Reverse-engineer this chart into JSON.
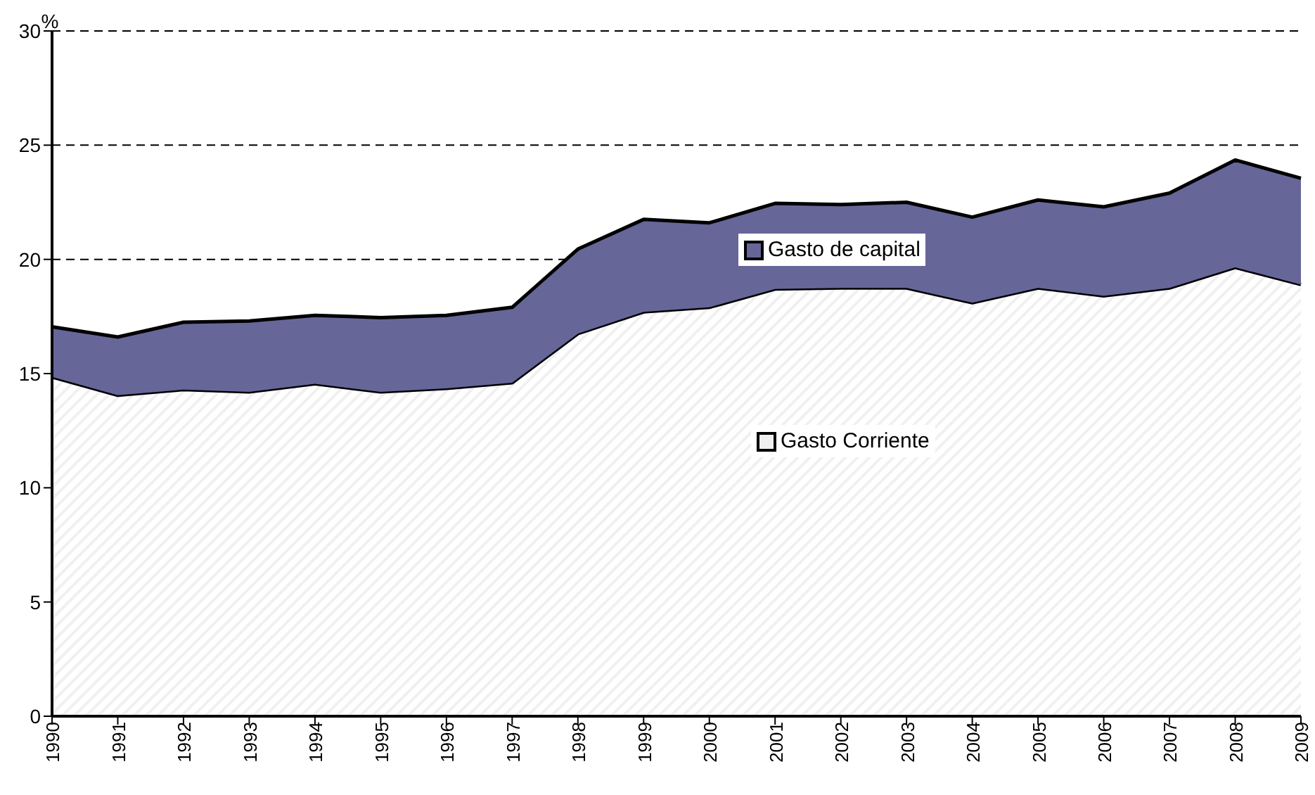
{
  "chart_data": {
    "type": "area",
    "stacked": true,
    "ylabel": "%",
    "categories": [
      "1990",
      "1991",
      "1992",
      "1993",
      "1994",
      "1995",
      "1996",
      "1997",
      "1998",
      "1999",
      "2000",
      "2001",
      "2002",
      "2003",
      "2004",
      "2005",
      "2006",
      "2007",
      "2008",
      "2009"
    ],
    "series": [
      {
        "name": "Gasto Corriente",
        "color": "#f0f0f0",
        "values": [
          14.85,
          14.05,
          14.3,
          14.2,
          14.55,
          14.2,
          14.35,
          14.6,
          16.75,
          17.7,
          17.9,
          18.7,
          18.75,
          18.75,
          18.1,
          18.75,
          18.4,
          18.75,
          19.65,
          18.9
        ]
      },
      {
        "name": "Gasto de capital",
        "color": "#666699",
        "values": [
          2.2,
          2.55,
          2.95,
          3.1,
          3.0,
          3.25,
          3.2,
          3.3,
          3.7,
          4.05,
          3.7,
          3.75,
          3.65,
          3.75,
          3.75,
          3.85,
          3.9,
          4.15,
          4.7,
          4.65
        ]
      }
    ],
    "ylim": [
      0,
      30
    ],
    "yticks": [
      0,
      5,
      10,
      15,
      20,
      25,
      30
    ],
    "grid": "y",
    "legend": "center"
  }
}
